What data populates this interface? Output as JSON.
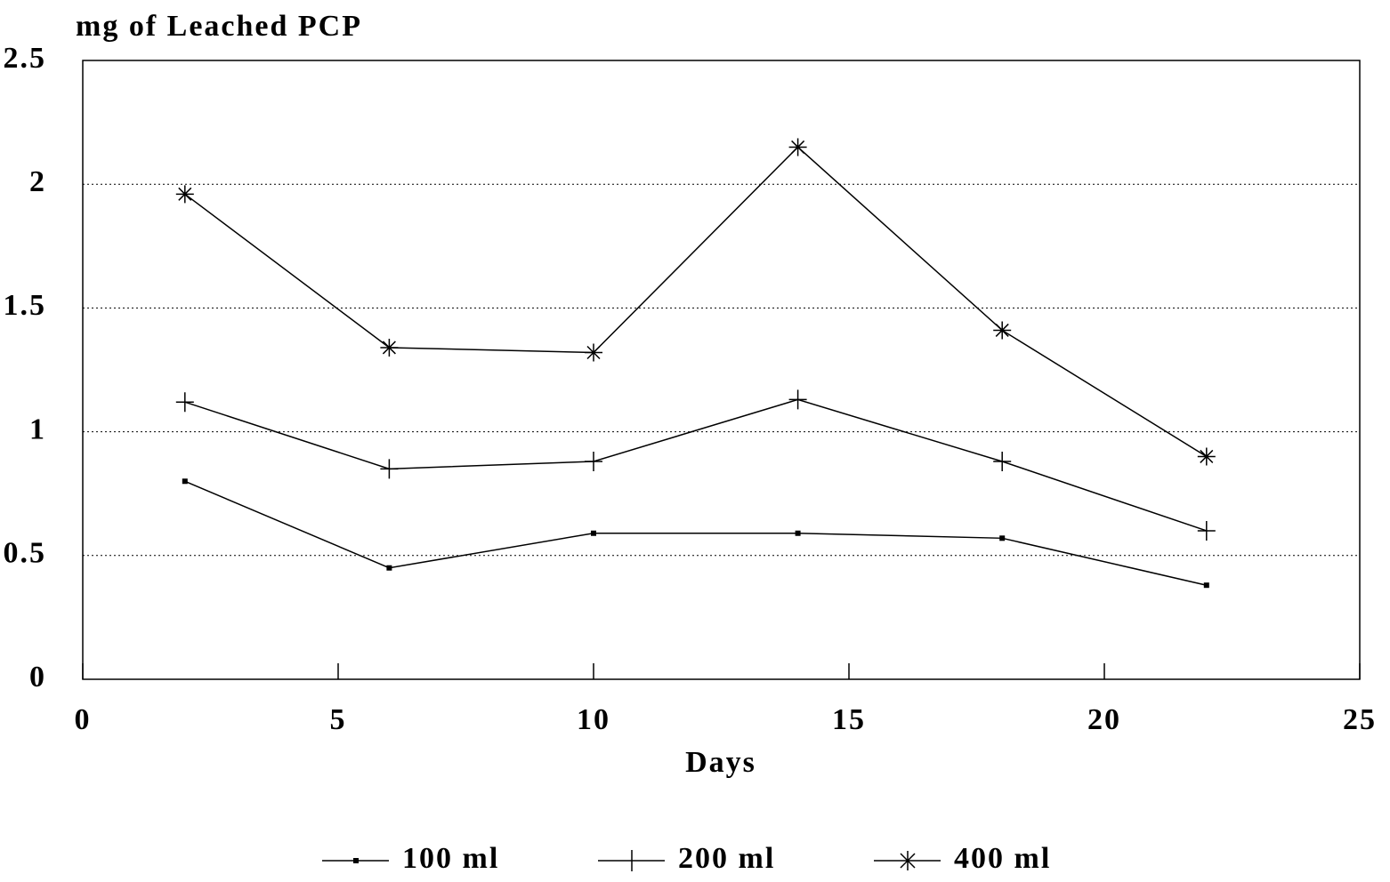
{
  "chart_data": {
    "type": "line",
    "y_label": "mg of Leached PCP",
    "x_label": "Days",
    "x": [
      2,
      6,
      10,
      14,
      18,
      22
    ],
    "series": [
      {
        "name": "100 ml",
        "color": "#000000",
        "marker": "square",
        "values": [
          0.8,
          0.45,
          0.59,
          0.59,
          0.57,
          0.38
        ]
      },
      {
        "name": "200 ml",
        "color": "#000000",
        "marker": "plus",
        "values": [
          1.12,
          0.85,
          0.88,
          1.13,
          0.88,
          0.6
        ]
      },
      {
        "name": "400 ml",
        "color": "#000000",
        "marker": "asterisk",
        "values": [
          1.96,
          1.34,
          1.32,
          2.15,
          1.41,
          0.9
        ]
      }
    ],
    "xlim": [
      0,
      25
    ],
    "xticks": [
      0,
      5,
      10,
      15,
      20,
      25
    ],
    "ylim": [
      0,
      2.5
    ],
    "yticks": [
      0,
      0.5,
      1,
      1.5,
      2,
      2.5
    ],
    "grid": true,
    "legend": "bottom"
  }
}
